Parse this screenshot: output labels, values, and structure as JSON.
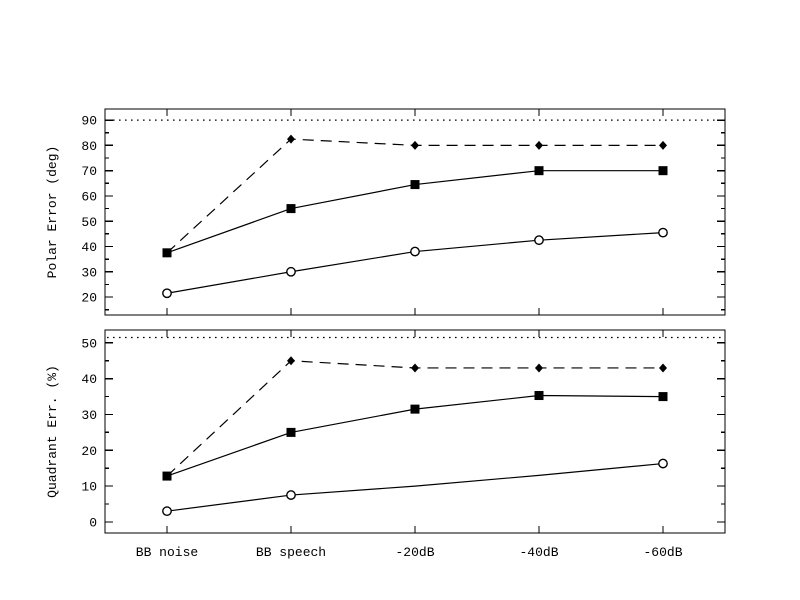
{
  "figure": {
    "background": "#ffffff",
    "line_color": "#000000",
    "marker_fill": "#000000",
    "open_marker_fill": "#ffffff"
  },
  "chart_data": [
    {
      "type": "line",
      "panel": "top",
      "title": "",
      "xlabel": "",
      "ylabel": "Polar Error (deg)",
      "categories": [
        "BB noise",
        "BB speech",
        "-20dB",
        "-40dB",
        "-60dB"
      ],
      "yticks": [
        20,
        30,
        40,
        50,
        60,
        70,
        80,
        90
      ],
      "minor_tick_step": 5,
      "ylim": [
        12.9,
        94.4
      ],
      "grid": false,
      "legend": "none",
      "reference_line": {
        "style": "dotted",
        "value": 90
      },
      "show_x_labels": false,
      "series": [
        {
          "name": "filled-diamond-dashed",
          "marker": "diamond",
          "line": "dashed",
          "values": [
            37.5,
            82.5,
            80,
            80,
            80
          ],
          "marker_at": [
            0,
            1,
            2,
            3,
            4
          ]
        },
        {
          "name": "filled-square-solid",
          "marker": "square",
          "line": "solid",
          "values": [
            37.5,
            55,
            64.5,
            70,
            70
          ],
          "marker_at": [
            0,
            1,
            2,
            3,
            4
          ]
        },
        {
          "name": "open-circle-solid",
          "marker": "circle-open",
          "line": "solid",
          "values": [
            21.5,
            30,
            38,
            42.5,
            45.5
          ],
          "marker_at": [
            0,
            1,
            2,
            3,
            4
          ]
        }
      ]
    },
    {
      "type": "line",
      "panel": "bottom",
      "title": "",
      "xlabel": "",
      "ylabel": "Quadrant Err. (%)",
      "categories": [
        "BB noise",
        "BB speech",
        "-20dB",
        "-40dB",
        "-60dB"
      ],
      "yticks": [
        0,
        10,
        20,
        30,
        40,
        50
      ],
      "minor_tick_step": 5,
      "ylim": [
        -3.1,
        53.6
      ],
      "grid": false,
      "legend": "none",
      "reference_line": {
        "style": "dotted",
        "value": 51.5
      },
      "show_x_labels": true,
      "series": [
        {
          "name": "filled-diamond-dashed",
          "marker": "diamond",
          "line": "dashed",
          "values": [
            12.8,
            45,
            43,
            43,
            43
          ],
          "marker_at": [
            0,
            1,
            2,
            3,
            4
          ]
        },
        {
          "name": "filled-square-solid",
          "marker": "square",
          "line": "solid",
          "values": [
            12.8,
            25,
            31.5,
            35.3,
            35
          ],
          "marker_at": [
            0,
            1,
            2,
            3,
            4
          ]
        },
        {
          "name": "open-circle-solid",
          "marker": "circle-open",
          "line": "solid",
          "values": [
            3,
            7.5,
            10,
            13,
            16.3
          ],
          "marker_at": [
            0,
            1,
            4
          ]
        }
      ]
    }
  ]
}
